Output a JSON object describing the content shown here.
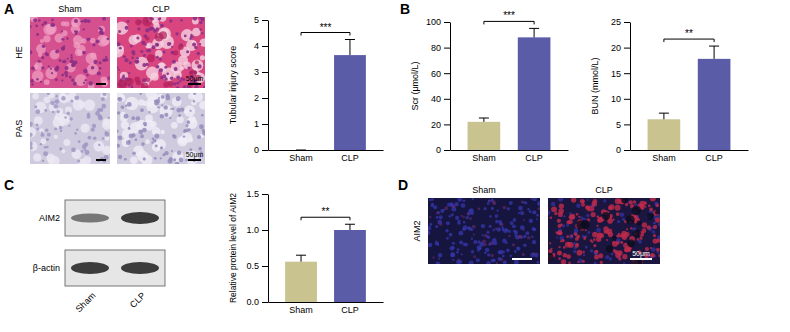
{
  "chart_data": [
    {
      "type": "bar",
      "y_label": "Tubular injury score",
      "categories": [
        "Sham",
        "CLP"
      ],
      "values": [
        0,
        3.65
      ],
      "errors": [
        0,
        0.6
      ],
      "colors": [
        "#c8c38f",
        "#5a5ca8"
      ],
      "ylim": [
        0,
        5
      ],
      "yticks": [
        0,
        1,
        2,
        3,
        4,
        5
      ],
      "annotation": "***"
    },
    {
      "type": "bar",
      "y_label": "Scr (μmol/L)",
      "categories": [
        "Sham",
        "CLP"
      ],
      "values": [
        22,
        88
      ],
      "errors": [
        3,
        7
      ],
      "colors": [
        "#c8c38f",
        "#5a5ca8"
      ],
      "ylim": [
        0,
        100
      ],
      "yticks": [
        0,
        20,
        40,
        60,
        80,
        100
      ],
      "annotation": "***"
    },
    {
      "type": "bar",
      "y_label": "BUN (mmol/L)",
      "categories": [
        "Sham",
        "CLP"
      ],
      "values": [
        6,
        17.8
      ],
      "errors": [
        1.2,
        2.5
      ],
      "colors": [
        "#c8c38f",
        "#5a5ca8"
      ],
      "ylim": [
        0,
        25
      ],
      "yticks": [
        0,
        5,
        10,
        15,
        20,
        25
      ],
      "annotation": "**"
    },
    {
      "type": "bar",
      "y_label": "Relative protein level of AIM2",
      "categories": [
        "Sham",
        "CLP"
      ],
      "values": [
        0.56,
        1.0
      ],
      "errors": [
        0.09,
        0.08
      ],
      "colors": [
        "#c8c38f",
        "#5a5ca8"
      ],
      "ylim": [
        0,
        1.5
      ],
      "yticks": [
        {
          "value": 0,
          "label": "0.0"
        },
        0.5,
        {
          "value": 1,
          "label": "1.0"
        },
        {
          "value": 1.5,
          "label": "1.5"
        }
      ],
      "annotation": "**"
    }
  ],
  "figure": {
    "panel_labels": [
      "A",
      "B",
      "C",
      "D"
    ],
    "histology": {
      "row_labels": [
        "HE",
        "PAS"
      ],
      "column_labels": [
        "Sham",
        "CLP"
      ],
      "scale_bar": "50μm"
    },
    "western_blot": {
      "bands": [
        "AIM2",
        "β-actin"
      ],
      "lanes": [
        "Sham",
        "CLP"
      ]
    },
    "immunofluorescence": {
      "row_label": "AIM2",
      "column_labels": [
        "Sham",
        "CLP"
      ],
      "scale_bar": "50μm"
    }
  }
}
